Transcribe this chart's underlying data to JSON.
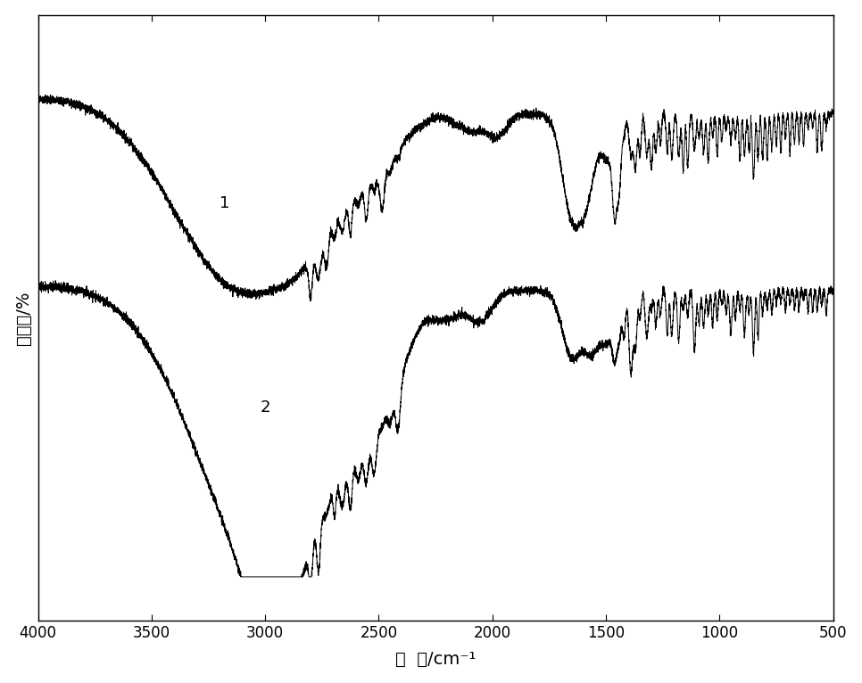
{
  "xlabel": "波  数/cm⁻¹",
  "ylabel": "透过率/%",
  "xlim": [
    4000,
    500
  ],
  "x_ticks": [
    4000,
    3500,
    3000,
    2500,
    2000,
    1500,
    1000,
    500
  ],
  "line_color": "#000000",
  "background_color": "#ffffff",
  "label1": "1",
  "label2": "2",
  "figsize": [
    9.66,
    7.66
  ],
  "dpi": 100,
  "ylim": [
    0,
    100
  ]
}
